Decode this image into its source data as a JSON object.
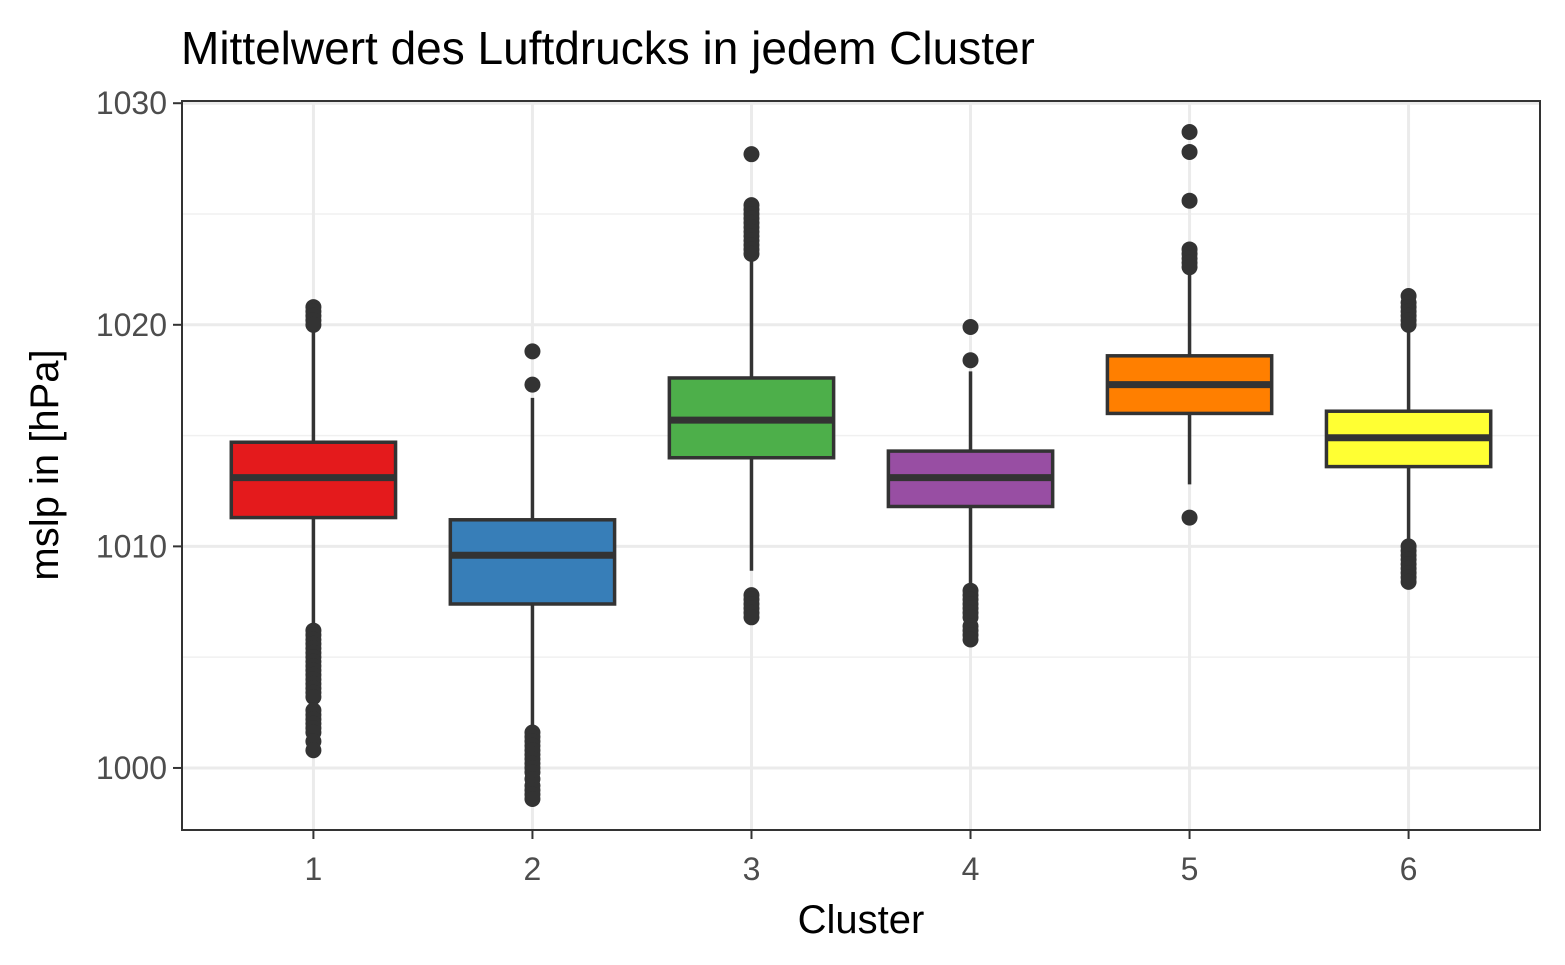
{
  "chart_data": {
    "type": "box",
    "title": "Mittelwert des Luftdrucks in jedem Cluster",
    "xlabel": "Cluster",
    "ylabel": "mslp in [hPa]",
    "ylim": [
      997.2,
      1030.1
    ],
    "yticks": [
      1000,
      1010,
      1020,
      1030
    ],
    "categories": [
      "1",
      "2",
      "3",
      "4",
      "5",
      "6"
    ],
    "grid": true,
    "legend": "none",
    "boxes": [
      {
        "category": "1",
        "color": "#E41A1C",
        "lower_whisker": 1006.4,
        "q1": 1011.3,
        "median": 1013.1,
        "q3": 1014.7,
        "upper_whisker": 1019.8,
        "outliers": [
          1020.8,
          1020.6,
          1020.4,
          1020.2,
          1020.0,
          1006.2,
          1006.0,
          1005.8,
          1005.6,
          1005.4,
          1005.2,
          1005.0,
          1004.8,
          1004.6,
          1004.4,
          1004.2,
          1004.0,
          1003.8,
          1003.6,
          1003.4,
          1003.2,
          1002.6,
          1002.4,
          1002.2,
          1002.0,
          1001.8,
          1001.6,
          1001.2,
          1000.8
        ]
      },
      {
        "category": "2",
        "color": "#377EB8",
        "lower_whisker": 1001.9,
        "q1": 1007.4,
        "median": 1009.6,
        "q3": 1011.2,
        "upper_whisker": 1016.7,
        "outliers": [
          1018.8,
          1017.3,
          1001.6,
          1001.4,
          1001.2,
          1001.0,
          1000.8,
          1000.6,
          1000.4,
          1000.2,
          1000.0,
          999.8,
          999.5,
          999.2,
          999.0,
          998.8,
          998.6
        ]
      },
      {
        "category": "3",
        "color": "#4DAF4A",
        "lower_whisker": 1008.9,
        "q1": 1014.0,
        "median": 1015.7,
        "q3": 1017.6,
        "upper_whisker": 1022.9,
        "outliers": [
          1027.7,
          1025.4,
          1025.2,
          1025.0,
          1024.8,
          1024.6,
          1024.4,
          1024.2,
          1024.0,
          1023.8,
          1023.6,
          1023.4,
          1023.2,
          1007.8,
          1007.6,
          1007.4,
          1007.2,
          1007.0,
          1006.8
        ]
      },
      {
        "category": "4",
        "color": "#984EA3",
        "lower_whisker": 1008.3,
        "q1": 1011.8,
        "median": 1013.1,
        "q3": 1014.3,
        "upper_whisker": 1017.9,
        "outliers": [
          1019.9,
          1018.4,
          1008.0,
          1007.8,
          1007.6,
          1007.4,
          1007.2,
          1007.0,
          1006.8,
          1006.4,
          1006.2,
          1006.0,
          1005.8
        ]
      },
      {
        "category": "5",
        "color": "#FF7F00",
        "lower_whisker": 1012.8,
        "q1": 1016.0,
        "median": 1017.3,
        "q3": 1018.6,
        "upper_whisker": 1022.4,
        "outliers": [
          1028.7,
          1027.8,
          1025.6,
          1023.4,
          1023.2,
          1023.0,
          1022.8,
          1022.6,
          1011.3
        ]
      },
      {
        "category": "6",
        "color": "#FFFF33",
        "lower_whisker": 1010.2,
        "q1": 1013.6,
        "median": 1014.9,
        "q3": 1016.1,
        "upper_whisker": 1019.8,
        "outliers": [
          1021.3,
          1021.0,
          1020.8,
          1020.6,
          1020.4,
          1020.2,
          1020.0,
          1010.0,
          1009.8,
          1009.6,
          1009.4,
          1009.2,
          1009.0,
          1008.8,
          1008.6,
          1008.4
        ]
      }
    ]
  }
}
